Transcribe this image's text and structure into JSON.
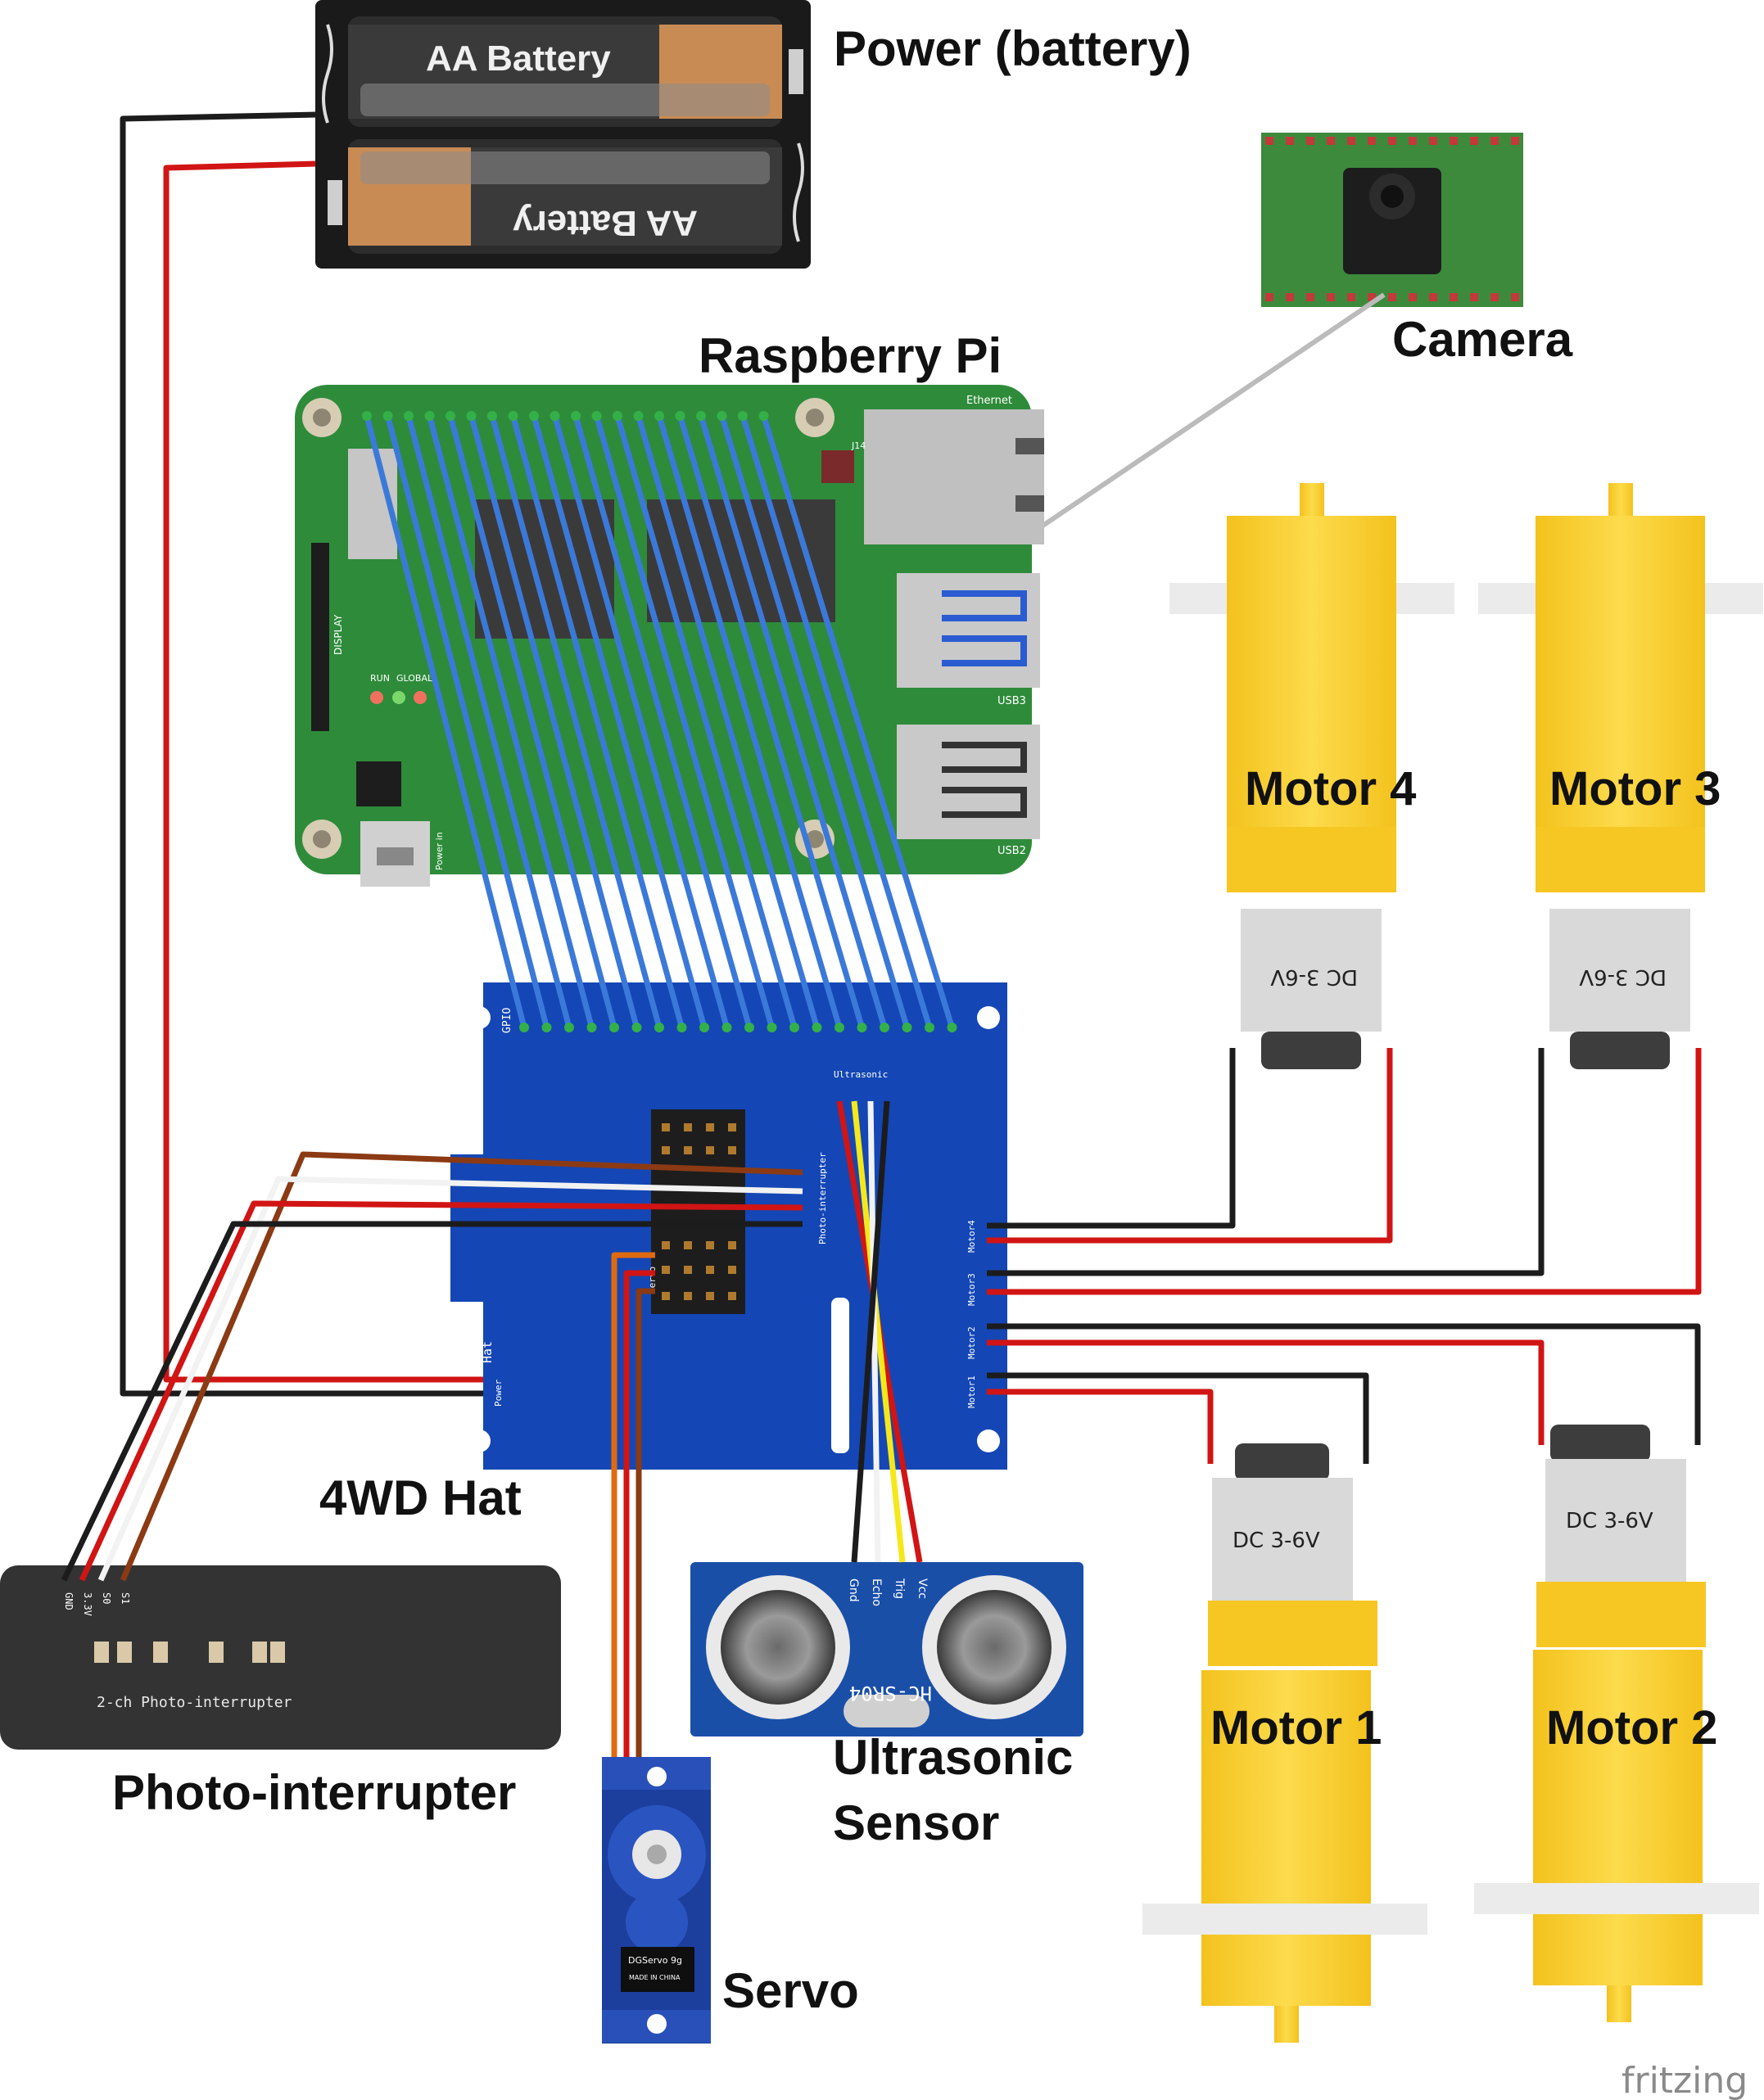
{
  "labels": {
    "power": "Power (battery)",
    "camera": "Camera",
    "raspberry_pi": "Raspberry Pi",
    "motor4": "Motor 4",
    "motor3": "Motor 3",
    "motor1": "Motor 1",
    "motor2": "Motor 2",
    "hat": "4WD Hat",
    "photo_interrupter": "Photo-interrupter",
    "ultrasonic_line1": "Ultrasonic",
    "ultrasonic_line2": "Sensor",
    "servo": "Servo",
    "fritzing": "fritzing"
  },
  "battery": {
    "cell_label": "AA Battery"
  },
  "pi": {
    "ethernet": "Ethernet",
    "usb3": "USB3",
    "usb2": "USB2",
    "display": "DISPLAY",
    "run": "RUN",
    "global": "GLOBAL",
    "power_in": "Power in",
    "j14": "J14"
  },
  "hat": {
    "gpio": "GPIO",
    "ultrasonic": "Ultrasonic",
    "photo_interrupter": "Photo-interrupter",
    "servo": "Servo",
    "motor4": "Motor4",
    "motor3": "Motor3",
    "motor2": "Motor2",
    "motor1": "Motor1",
    "power": "Power",
    "board_line1": "4WD",
    "board_line2": "Hat"
  },
  "motor": {
    "rating_flipped": "DC 3-6V",
    "rating": "DC 3-6V"
  },
  "photo": {
    "pins": [
      "GND",
      "3.3V",
      "S0",
      "S1"
    ],
    "caption": "2-ch Photo-interrupter"
  },
  "ultrasonic_sensor": {
    "pins": [
      "Gnd",
      "Echo",
      "Trig",
      "Vcc"
    ],
    "model": "HC-SR04"
  },
  "servo_part": {
    "brand": "DGServo 9g",
    "origin": "MADE IN CHINA"
  },
  "colors": {
    "pi_green": "#2e8b3a",
    "hat_blue": "#1447b5",
    "gpio_wire": "#3b79d9",
    "motor_yellow": "#f5ca2a",
    "wire_red": "#d11414",
    "wire_black": "#1c1c1c",
    "wire_brown": "#8b3a14",
    "wire_orange": "#e06a10"
  }
}
